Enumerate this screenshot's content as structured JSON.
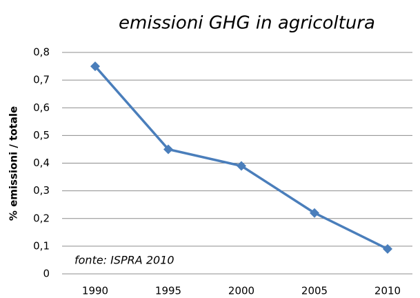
{
  "chart_data": {
    "type": "line",
    "title": "emissioni GHG in agricoltura",
    "y_label": "% emissioni / totale",
    "annotation": "fonte: ISPRA 2010",
    "categories": [
      "1990",
      "1995",
      "2000",
      "2005",
      "2010"
    ],
    "series": [
      {
        "name": "emissioni GHG",
        "color": "#4a7ebb",
        "values": [
          0.75,
          0.45,
          0.39,
          0.22,
          0.09
        ]
      }
    ],
    "ylim": [
      0,
      0.8
    ],
    "yticks": [
      0,
      {
        "value": 0.1,
        "label": "0,1"
      },
      {
        "value": 0.2,
        "label": "0,2"
      },
      {
        "value": 0.3,
        "label": "0,3"
      },
      {
        "value": 0.4,
        "label": "0,4"
      },
      {
        "value": 0.5,
        "label": "0,5"
      },
      {
        "value": 0.6,
        "label": "0,6"
      },
      {
        "value": 0.7,
        "label": "0,7"
      },
      {
        "value": 0.8,
        "label": "0,8"
      }
    ],
    "grid": true
  }
}
